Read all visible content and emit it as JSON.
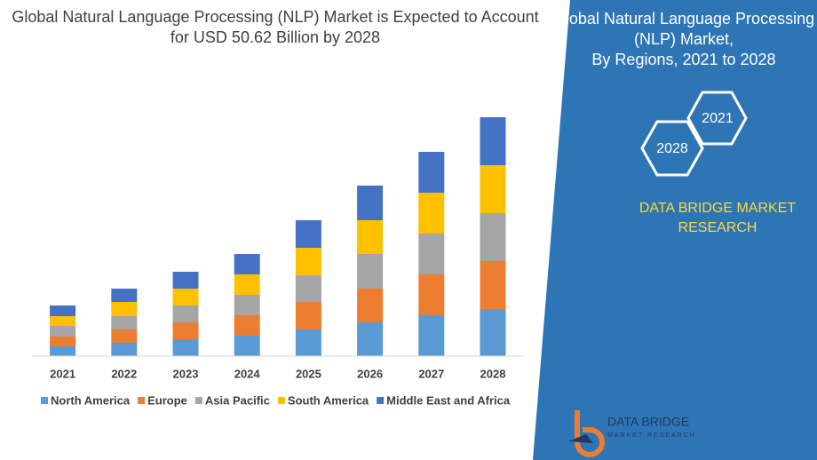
{
  "chart_data": {
    "type": "stacked_bar",
    "title": "Global Natural Language Processing (NLP) Market is Expected to Account for USD 50.62 Billion by 2028",
    "categories": [
      "2021",
      "2022",
      "2023",
      "2024",
      "2025",
      "2026",
      "2027",
      "2028"
    ],
    "series": [
      {
        "name": "North America",
        "color": "#5b9bd5",
        "values": [
          11,
          15,
          19,
          23,
          30,
          38,
          46,
          53
        ]
      },
      {
        "name": "Europe",
        "color": "#ed7d31",
        "values": [
          11,
          15,
          19,
          23,
          31,
          38,
          46,
          54
        ]
      },
      {
        "name": "Asia Pacific",
        "color": "#a5a5a5",
        "values": [
          12,
          15,
          19,
          23,
          30,
          39,
          46,
          54
        ]
      },
      {
        "name": "South America",
        "color": "#ffc000",
        "values": [
          11,
          16,
          19,
          23,
          31,
          38,
          46,
          54
        ]
      },
      {
        "name": "Middle East and Africa",
        "color": "#4472c4",
        "values": [
          12,
          15,
          19,
          23,
          31,
          39,
          46,
          54
        ]
      }
    ]
  },
  "side_panel": {
    "title_lines": [
      "Global Natural Language Processing",
      "(NLP) Market,",
      "By Regions, 2021 to 2028"
    ],
    "hexagon_labels": [
      "2021",
      "2028"
    ],
    "brand_lines": [
      "DATA BRIDGE MARKET",
      "RESEARCH"
    ],
    "logo_name": "DATA BRIDGE",
    "logo_tagline": "MARKET RESEARCH"
  }
}
